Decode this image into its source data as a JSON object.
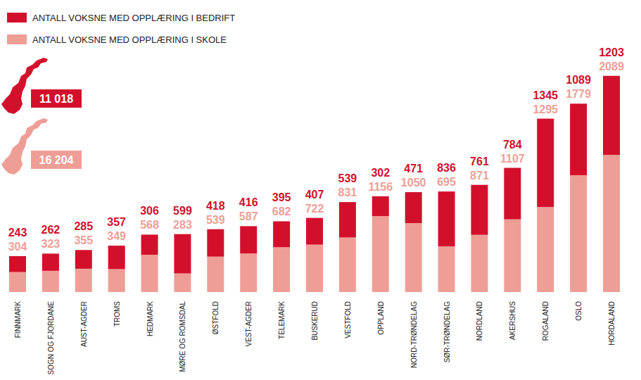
{
  "chart_data": {
    "type": "bar",
    "stacked": true,
    "data_labels": true,
    "tick_labels": "x",
    "ylim": [
      0,
      3300
    ],
    "categories": [
      "FINNMARK",
      "SOGN OG FJORDANE",
      "AUST-AGDER",
      "TROMS",
      "HEDMARK",
      "MØRE OG ROMSDAL",
      "ØSTFOLD",
      "VEST-AGDER",
      "TELEMARK",
      "BUSKERUD",
      "VESTFOLD",
      "OPPLAND",
      "NORD-TRØNDELAG",
      "SØR-TRØNDELAG",
      "NORDLAND",
      "AKERSHUS",
      "ROGALAND",
      "OSLO",
      "HORDALAND"
    ],
    "series": [
      {
        "name": "ANTALL VOKSNE MED OPPLÆRING I BEDRIFT",
        "color": "#d3102c",
        "values": [
          243,
          262,
          285,
          357,
          306,
          599,
          418,
          416,
          395,
          407,
          539,
          302,
          471,
          836,
          761,
          784,
          1345,
          1089,
          1203
        ]
      },
      {
        "name": "ANTALL VOKSNE MED OPPLÆRING I SKOLE",
        "color": "#ef9e96",
        "values": [
          304,
          323,
          355,
          349,
          568,
          283,
          539,
          587,
          682,
          722,
          831,
          1156,
          1050,
          695,
          871,
          1107,
          1295,
          1779,
          2089
        ]
      }
    ],
    "totals": {
      "values": [
        11018,
        16204
      ],
      "value_labels": [
        "11 018",
        "16 204"
      ]
    }
  }
}
